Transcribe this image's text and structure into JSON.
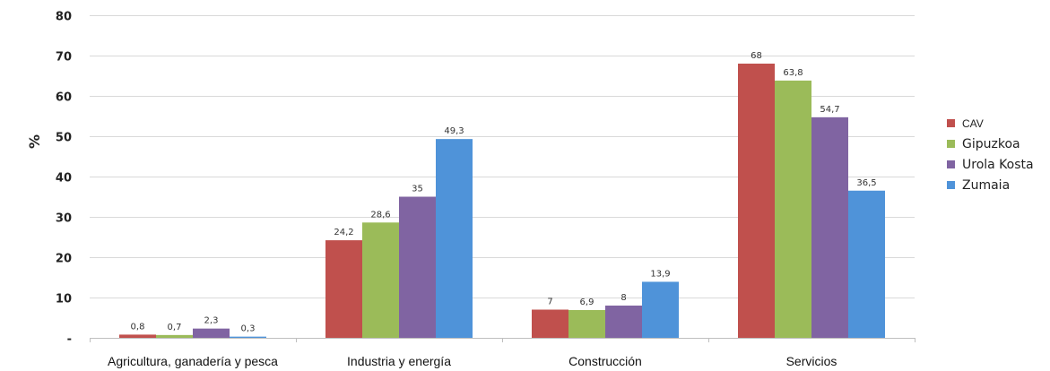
{
  "chart_data": {
    "type": "bar",
    "ylabel": "%",
    "ylim": [
      0,
      80
    ],
    "yticks": [
      "-",
      "10",
      "20",
      "30",
      "40",
      "50",
      "60",
      "70",
      "80"
    ],
    "grid": true,
    "legend_position": "right",
    "categories": [
      "Agricultura, ganadería y pesca",
      "Industria y energía",
      "Construcción",
      "Servicios"
    ],
    "series": [
      {
        "name": "CAV",
        "color": "#c0504d",
        "values": [
          0.8,
          24.2,
          7,
          68
        ],
        "labels": [
          "0,8",
          "24,2",
          "7",
          "68"
        ]
      },
      {
        "name": "Gipuzkoa",
        "color": "#9bbb59",
        "values": [
          0.7,
          28.6,
          6.9,
          63.8
        ],
        "labels": [
          "0,7",
          "28,6",
          "6,9",
          "63,8"
        ]
      },
      {
        "name": "Urola Kosta",
        "color": "#8064a2",
        "values": [
          2.3,
          35,
          8,
          54.7
        ],
        "labels": [
          "2,3",
          "35",
          "8",
          "54,7"
        ]
      },
      {
        "name": "Zumaia",
        "color": "#4f93d9",
        "values": [
          0.3,
          49.3,
          13.9,
          36.5
        ],
        "labels": [
          "0,3",
          "49,3",
          "13,9",
          "36,5"
        ]
      }
    ]
  }
}
